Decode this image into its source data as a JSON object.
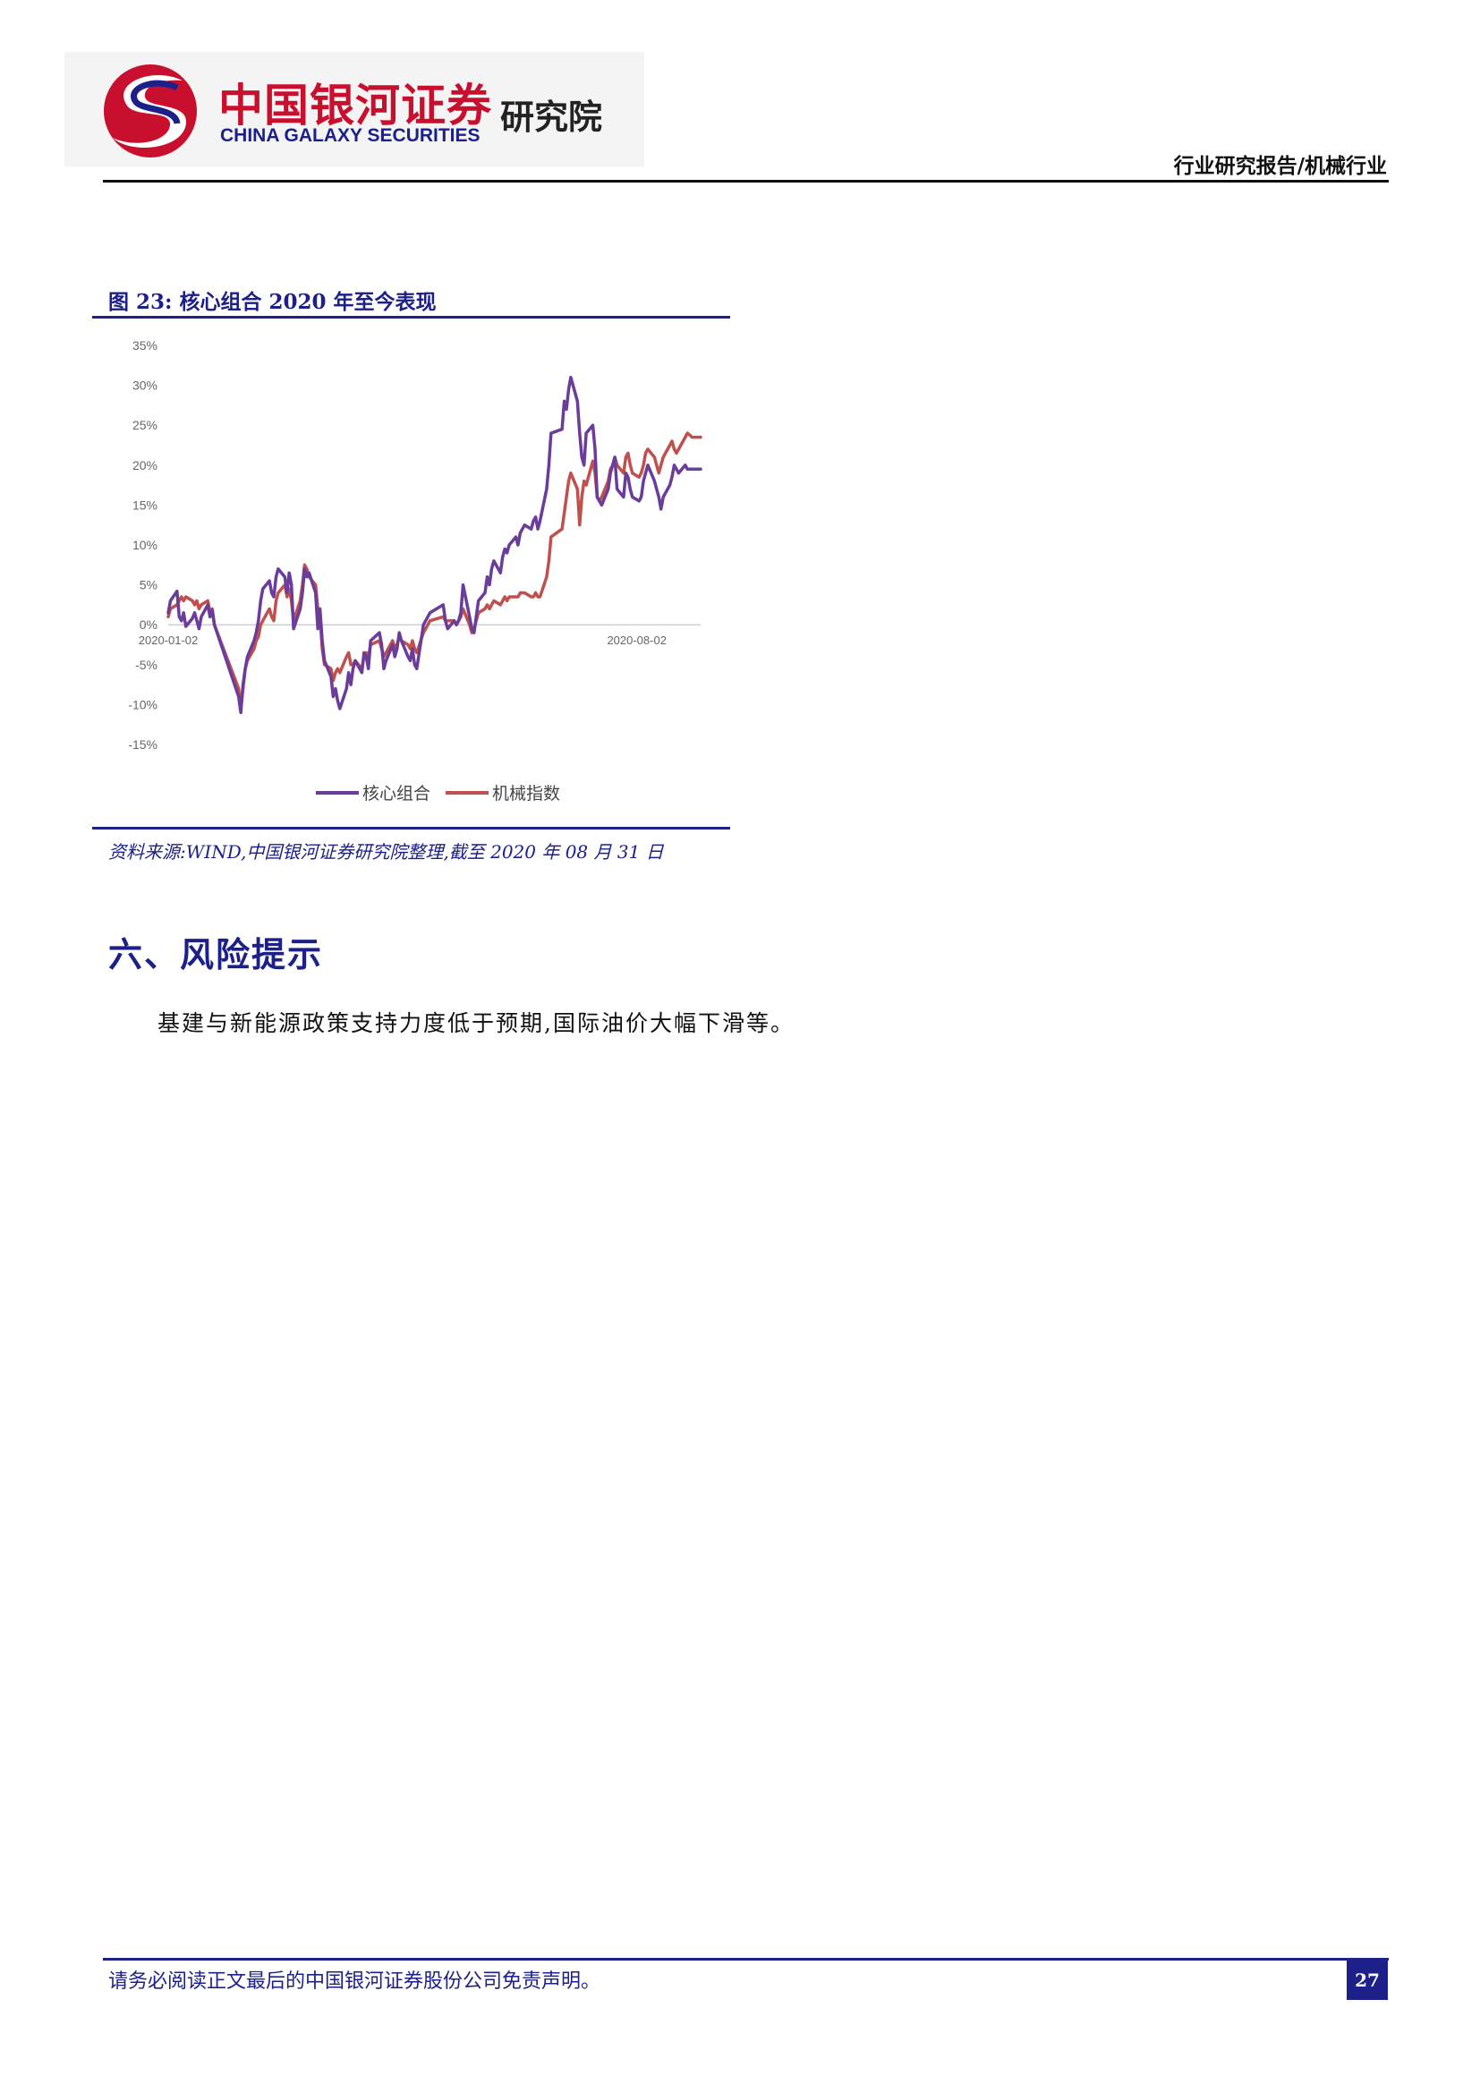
{
  "header": {
    "logo_cn": "中国银河证券",
    "logo_en": "CHINA GALAXY SECURITIES",
    "logo_institute": "研究院",
    "report_type": "行业研究报告/机械行业"
  },
  "figure": {
    "title": "图 23:  核心组合 2020 年至今表现",
    "source": "资料来源:WIND,中国银河证券研究院整理,截至 2020 年 08 月 31 日"
  },
  "chart_data": {
    "type": "line",
    "title": "",
    "xlabel": "",
    "ylabel": "",
    "ylim": [
      -15,
      35
    ],
    "y_ticks": [
      "35%",
      "30%",
      "25%",
      "20%",
      "15%",
      "10%",
      "5%",
      "0%",
      "-5%",
      "-10%",
      "-15%"
    ],
    "x_tick_labels": [
      "2020-01-02",
      "2020-08-02"
    ],
    "x_range": [
      "2020-01-02",
      "2020-08-31"
    ],
    "grid": false,
    "legend_position": "bottom",
    "colors": {
      "核心组合": "#6a3d9a",
      "机械指数": "#c0504d"
    },
    "x": [
      "2020-01-02",
      "2020-01-03",
      "2020-01-06",
      "2020-01-07",
      "2020-01-08",
      "2020-01-09",
      "2020-01-10",
      "2020-01-13",
      "2020-01-14",
      "2020-01-15",
      "2020-01-16",
      "2020-01-17",
      "2020-01-20",
      "2020-01-21",
      "2020-01-22",
      "2020-01-23",
      "2020-02-03",
      "2020-02-04",
      "2020-02-05",
      "2020-02-06",
      "2020-02-07",
      "2020-02-10",
      "2020-02-11",
      "2020-02-12",
      "2020-02-13",
      "2020-02-14",
      "2020-02-17",
      "2020-02-18",
      "2020-02-19",
      "2020-02-20",
      "2020-02-21",
      "2020-02-24",
      "2020-02-25",
      "2020-02-26",
      "2020-02-27",
      "2020-02-28",
      "2020-03-02",
      "2020-03-03",
      "2020-03-04",
      "2020-03-05",
      "2020-03-06",
      "2020-03-09",
      "2020-03-10",
      "2020-03-11",
      "2020-03-12",
      "2020-03-13",
      "2020-03-16",
      "2020-03-17",
      "2020-03-18",
      "2020-03-19",
      "2020-03-20",
      "2020-03-23",
      "2020-03-24",
      "2020-03-25",
      "2020-03-26",
      "2020-03-27",
      "2020-03-30",
      "2020-03-31",
      "2020-04-01",
      "2020-04-02",
      "2020-04-03",
      "2020-04-07",
      "2020-04-08",
      "2020-04-09",
      "2020-04-10",
      "2020-04-13",
      "2020-04-14",
      "2020-04-15",
      "2020-04-16",
      "2020-04-17",
      "2020-04-20",
      "2020-04-21",
      "2020-04-22",
      "2020-04-23",
      "2020-04-24",
      "2020-04-27",
      "2020-04-28",
      "2020-04-29",
      "2020-04-30",
      "2020-05-06",
      "2020-05-07",
      "2020-05-08",
      "2020-05-11",
      "2020-05-12",
      "2020-05-13",
      "2020-05-14",
      "2020-05-15",
      "2020-05-18",
      "2020-05-19",
      "2020-05-20",
      "2020-05-21",
      "2020-05-22",
      "2020-05-25",
      "2020-05-26",
      "2020-05-27",
      "2020-05-28",
      "2020-05-29",
      "2020-06-01",
      "2020-06-02",
      "2020-06-03",
      "2020-06-04",
      "2020-06-05",
      "2020-06-08",
      "2020-06-09",
      "2020-06-10",
      "2020-06-11",
      "2020-06-12",
      "2020-06-15",
      "2020-06-16",
      "2020-06-17",
      "2020-06-18",
      "2020-06-19",
      "2020-06-22",
      "2020-06-23",
      "2020-06-24",
      "2020-06-29",
      "2020-06-30",
      "2020-07-01",
      "2020-07-02",
      "2020-07-03",
      "2020-07-06",
      "2020-07-07",
      "2020-07-08",
      "2020-07-09",
      "2020-07-10",
      "2020-07-13",
      "2020-07-14",
      "2020-07-15",
      "2020-07-16",
      "2020-07-17",
      "2020-07-20",
      "2020-07-21",
      "2020-07-22",
      "2020-07-23",
      "2020-07-24",
      "2020-07-27",
      "2020-07-28",
      "2020-07-29",
      "2020-07-30",
      "2020-07-31",
      "2020-08-03",
      "2020-08-04",
      "2020-08-05",
      "2020-08-06",
      "2020-08-07",
      "2020-08-10",
      "2020-08-11",
      "2020-08-12",
      "2020-08-13",
      "2020-08-14",
      "2020-08-17",
      "2020-08-18",
      "2020-08-19",
      "2020-08-20",
      "2020-08-21",
      "2020-08-24",
      "2020-08-25",
      "2020-08-26",
      "2020-08-27",
      "2020-08-28",
      "2020-08-31"
    ],
    "series": [
      {
        "name": "核心组合",
        "values": [
          1.5,
          3.0,
          4.2,
          1.0,
          0.5,
          1.5,
          -0.2,
          0.8,
          1.5,
          0.5,
          -0.5,
          1.0,
          2.5,
          1.0,
          1.8,
          0.0,
          -9.0,
          -11.0,
          -7.5,
          -5.5,
          -4.0,
          -2.0,
          -1.0,
          0.5,
          3.0,
          4.5,
          5.5,
          4.0,
          3.5,
          6.0,
          7.0,
          6.0,
          4.0,
          6.5,
          5.0,
          -0.5,
          2.0,
          4.0,
          7.0,
          6.0,
          6.5,
          4.0,
          -0.5,
          2.0,
          -2.0,
          -4.5,
          -6.5,
          -9.0,
          -8.0,
          -9.5,
          -10.5,
          -8.0,
          -6.0,
          -7.5,
          -5.5,
          -4.5,
          -6.0,
          -3.5,
          -4.0,
          -5.5,
          -2.0,
          -1.0,
          -2.5,
          -5.5,
          -4.5,
          -2.5,
          -4.0,
          -3.0,
          -1.0,
          -2.0,
          -4.0,
          -4.5,
          -3.0,
          -5.0,
          -5.5,
          0.0,
          0.5,
          1.0,
          1.5,
          2.5,
          0.5,
          -0.5,
          0.5,
          0.0,
          0.5,
          1.5,
          5.0,
          1.0,
          -0.5,
          -1.0,
          1.0,
          3.0,
          4.0,
          6.0,
          5.0,
          7.0,
          8.0,
          6.5,
          8.5,
          9.5,
          9.0,
          10.0,
          11.0,
          10.0,
          11.5,
          12.0,
          12.5,
          12.0,
          13.0,
          13.5,
          12.0,
          13.0,
          17.0,
          20.0,
          24.0,
          24.5,
          28.0,
          27.0,
          29.5,
          31.0,
          28.0,
          24.0,
          21.0,
          20.0,
          24.0,
          25.0,
          22.0,
          16.0,
          15.5,
          15.0,
          17.0,
          19.0,
          20.0,
          21.0,
          17.0,
          16.0,
          19.0,
          18.5,
          17.0,
          16.0,
          15.5,
          16.0,
          18.0,
          19.0,
          20.0,
          18.0,
          17.0,
          16.0,
          14.5,
          16.0,
          17.5,
          18.5,
          20.0,
          19.5,
          19.0,
          20.0,
          19.5,
          19.5,
          19.5,
          19.5,
          19.5
        ]
      },
      {
        "name": "机械指数",
        "values": [
          1.0,
          2.0,
          2.5,
          3.0,
          3.5,
          3.0,
          3.5,
          3.0,
          2.5,
          3.0,
          2.0,
          2.5,
          3.0,
          1.5,
          2.0,
          0.0,
          -8.0,
          -10.5,
          -8.0,
          -5.5,
          -4.5,
          -3.0,
          -2.0,
          -1.5,
          0.0,
          0.5,
          2.0,
          1.0,
          0.5,
          3.0,
          4.0,
          5.0,
          3.5,
          4.5,
          3.0,
          0.5,
          3.0,
          5.0,
          7.5,
          7.0,
          6.0,
          5.0,
          2.0,
          1.0,
          -3.0,
          -5.0,
          -5.5,
          -7.0,
          -6.0,
          -5.5,
          -6.0,
          -4.0,
          -3.5,
          -5.0,
          -5.0,
          -4.5,
          -5.5,
          -4.0,
          -3.5,
          -4.0,
          -2.5,
          -2.0,
          -3.0,
          -4.0,
          -3.5,
          -2.0,
          -3.0,
          -2.5,
          -1.5,
          -2.0,
          -2.5,
          -3.0,
          -2.0,
          -3.0,
          -3.5,
          -1.0,
          -0.5,
          0.0,
          0.5,
          1.0,
          0.5,
          0.5,
          0.5,
          0.0,
          0.5,
          1.0,
          2.0,
          0.0,
          -1.0,
          -0.5,
          0.5,
          1.5,
          2.0,
          2.5,
          2.0,
          2.5,
          3.0,
          2.5,
          3.0,
          3.5,
          3.0,
          3.5,
          3.5,
          3.5,
          4.0,
          4.0,
          4.0,
          3.5,
          3.5,
          4.0,
          3.5,
          3.5,
          6.0,
          8.0,
          11.0,
          12.0,
          14.0,
          16.0,
          18.0,
          19.0,
          17.0,
          12.5,
          16.0,
          18.0,
          17.5,
          20.5,
          19.0,
          16.0,
          15.5,
          16.0,
          18.0,
          19.5,
          20.0,
          21.0,
          20.0,
          19.0,
          21.0,
          21.5,
          20.0,
          19.0,
          18.5,
          19.0,
          20.0,
          21.5,
          22.0,
          21.0,
          20.0,
          19.0,
          20.0,
          21.0,
          22.5,
          23.0,
          22.0,
          21.5,
          22.0,
          23.5,
          24.0,
          23.8,
          23.5,
          23.5,
          23.5
        ]
      }
    ]
  },
  "section": {
    "heading": "六、风险提示",
    "body": "基建与新能源政策支持力度低于预期,国际油价大幅下滑等。"
  },
  "footer": {
    "disclaimer": "请务必阅读正文最后的中国银河证券股份公司免责声明。",
    "page_number": "27"
  }
}
